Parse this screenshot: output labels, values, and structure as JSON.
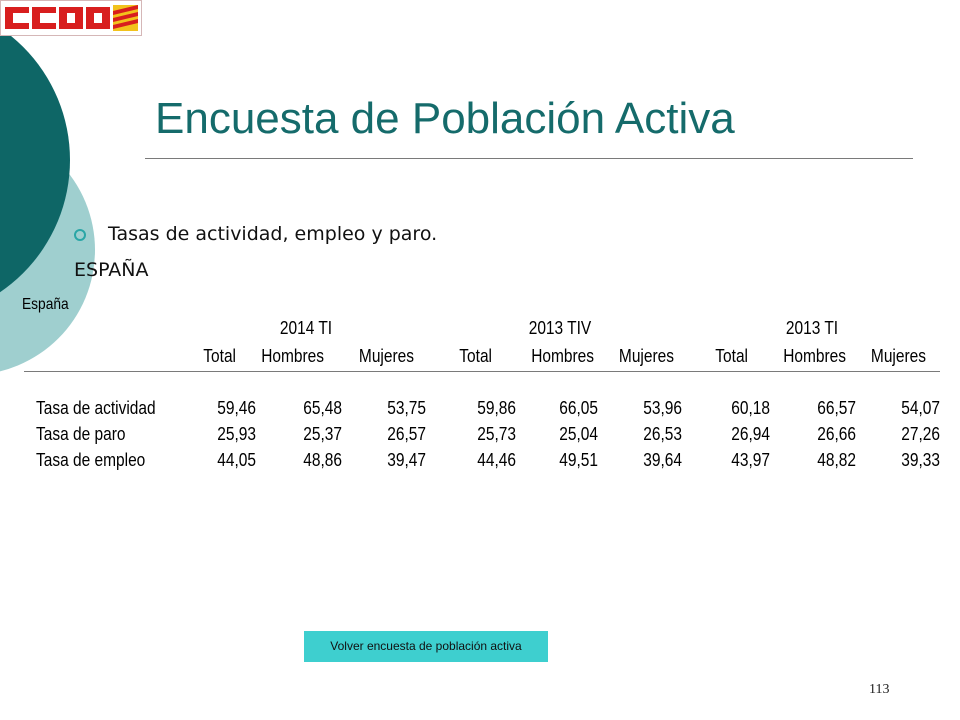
{
  "logo": {
    "text": "CCOO"
  },
  "colors": {
    "title": "#156b6b",
    "accent_dark": "#0e6666",
    "accent_light": "#9fcfcf",
    "button": "#3ecfcf",
    "logo_red": "#d81e1e",
    "logo_yellow": "#f2c21c"
  },
  "slide": {
    "title": "Encuesta de Población Activa",
    "bullet": "Tasas de actividad, empleo y paro.",
    "country": "ESPAÑA",
    "page_number": "113"
  },
  "table": {
    "label": "España",
    "periods": [
      "2014 TI",
      "2013 TIV",
      "2013 TI"
    ],
    "columns": [
      "Total",
      "Hombres",
      "Mujeres",
      "Total",
      "Hombres",
      "Mujeres",
      "Total",
      "Hombres",
      "Mujeres"
    ],
    "rows": [
      {
        "label": "Tasa de actividad",
        "values": [
          "59,46",
          "65,48",
          "53,75",
          "59,86",
          "66,05",
          "53,96",
          "60,18",
          "66,57",
          "54,07"
        ]
      },
      {
        "label": "Tasa de paro",
        "values": [
          "25,93",
          "25,37",
          "26,57",
          "25,73",
          "25,04",
          "26,53",
          "26,94",
          "26,66",
          "27,26"
        ]
      },
      {
        "label": "Tasa de empleo",
        "values": [
          "44,05",
          "48,86",
          "39,47",
          "44,46",
          "49,51",
          "39,64",
          "43,97",
          "48,82",
          "39,33"
        ]
      }
    ]
  },
  "back_button": {
    "label": "Volver encuesta de población  activa"
  }
}
